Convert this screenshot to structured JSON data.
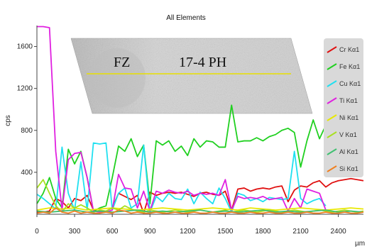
{
  "chart_data": {
    "type": "line",
    "title": "All Elements",
    "xlabel": "µm",
    "ylabel": "cps",
    "xlim": [
      0,
      2600
    ],
    "ylim": [
      0,
      1800
    ],
    "x_ticks": [
      0,
      300,
      600,
      900,
      1200,
      1500,
      1800,
      2100,
      2400
    ],
    "y_ticks": [
      400,
      800,
      1200,
      1600
    ],
    "grid": false,
    "legend_position": "right",
    "inset_image": {
      "label_left": "FZ",
      "label_right": "17-4 PH"
    },
    "series": [
      {
        "name": "Cr Kα1",
        "color": "#e01010",
        "x": [
          0,
          50,
          100,
          150,
          200,
          250,
          300,
          350,
          400,
          450,
          500,
          550,
          600,
          650,
          700,
          750,
          800,
          850,
          900,
          950,
          1000,
          1050,
          1100,
          1150,
          1200,
          1250,
          1300,
          1350,
          1400,
          1450,
          1500,
          1550,
          1600,
          1650,
          1700,
          1750,
          1800,
          1850,
          1900,
          1950,
          2000,
          2050,
          2100,
          2150,
          2200,
          2250,
          2300,
          2350,
          2400,
          2450,
          2500,
          2550,
          2600
        ],
        "y": [
          20,
          20,
          30,
          150,
          120,
          60,
          150,
          130,
          180,
          40,
          20,
          30,
          60,
          200,
          170,
          140,
          180,
          10,
          210,
          180,
          200,
          210,
          200,
          210,
          190,
          170,
          200,
          210,
          190,
          180,
          220,
          40,
          240,
          250,
          220,
          240,
          250,
          240,
          260,
          270,
          120,
          230,
          270,
          260,
          300,
          320,
          260,
          300,
          320,
          330,
          340,
          330,
          320
        ]
      },
      {
        "name": "Fe Kα1",
        "color": "#20d020",
        "x": [
          0,
          50,
          100,
          150,
          200,
          250,
          300,
          350,
          400,
          450,
          500,
          550,
          600,
          650,
          700,
          750,
          800,
          850,
          900,
          950,
          1000,
          1050,
          1100,
          1150,
          1200,
          1250,
          1300,
          1350,
          1400,
          1450,
          1500,
          1550,
          1600,
          1650,
          1700,
          1750,
          1800,
          1850,
          1900,
          1950,
          2000,
          2050,
          2100,
          2150,
          2200,
          2250,
          2300,
          2350,
          2400,
          2450,
          2500,
          2550,
          2600
        ],
        "y": [
          100,
          200,
          350,
          150,
          60,
          620,
          480,
          600,
          350,
          30,
          60,
          80,
          350,
          650,
          600,
          720,
          550,
          660,
          100,
          700,
          660,
          700,
          600,
          650,
          560,
          720,
          640,
          700,
          690,
          640,
          640,
          1040,
          690,
          700,
          700,
          730,
          700,
          740,
          760,
          800,
          820,
          780,
          450,
          700,
          900,
          720,
          850,
          920,
          930,
          920,
          910,
          900,
          900
        ]
      },
      {
        "name": "Cu Kα1",
        "color": "#20e0f0",
        "x": [
          0,
          50,
          100,
          150,
          200,
          250,
          300,
          350,
          400,
          450,
          500,
          550,
          600,
          650,
          700,
          750,
          800,
          850,
          900,
          950,
          1000,
          1050,
          1100,
          1150,
          1200,
          1250,
          1300,
          1350,
          1400,
          1450,
          1500,
          1550,
          1600,
          1650,
          1700,
          1750,
          1800,
          1850,
          1900,
          1950,
          2000,
          2050,
          2100,
          2150,
          2200,
          2250,
          2300
        ],
        "y": [
          190,
          150,
          100,
          50,
          640,
          200,
          40,
          500,
          40,
          680,
          670,
          680,
          40,
          200,
          250,
          60,
          100,
          660,
          20,
          170,
          120,
          200,
          150,
          140,
          240,
          100,
          210,
          150,
          100,
          250,
          150,
          20,
          200,
          180,
          130,
          150,
          120,
          160,
          150,
          140,
          150,
          600,
          150,
          100,
          130,
          150,
          80
        ]
      },
      {
        "name": "Ti Kα1",
        "color": "#e020e0",
        "x": [
          0,
          50,
          100,
          150,
          200,
          250,
          300,
          350,
          400,
          450,
          500,
          550,
          600,
          650,
          700,
          750,
          800,
          850,
          900,
          950,
          1000,
          1050,
          1100,
          1150,
          1200,
          1250,
          1300,
          1350,
          1400,
          1450,
          1500,
          1550,
          1600,
          1650,
          1700,
          1750,
          1800,
          1850,
          1900,
          1950,
          2000,
          2050,
          2100,
          2150,
          2200,
          2250,
          2300,
          2350
        ],
        "y": [
          1790,
          1790,
          1780,
          600,
          40,
          520,
          580,
          590,
          350,
          30,
          20,
          20,
          40,
          380,
          250,
          240,
          60,
          220,
          30,
          220,
          200,
          230,
          210,
          200,
          220,
          180,
          200,
          190,
          200,
          180,
          330,
          40,
          170,
          150,
          160,
          150,
          170,
          140,
          150,
          160,
          30,
          150,
          60,
          240,
          220,
          200,
          40,
          10
        ]
      },
      {
        "name": "Ni Kα1",
        "color": "#e8e800",
        "x": [
          0,
          100,
          200,
          300,
          400,
          500,
          600,
          700,
          800,
          900,
          1000,
          1100,
          1200,
          1300,
          1400,
          1500,
          1600,
          1700,
          1800,
          1900,
          2000,
          2100,
          2200,
          2300,
          2400,
          2500,
          2600
        ],
        "y": [
          40,
          60,
          50,
          60,
          40,
          50,
          60,
          50,
          40,
          50,
          60,
          50,
          40,
          50,
          60,
          50,
          40,
          60,
          50,
          40,
          50,
          60,
          50,
          40,
          50,
          60,
          50
        ]
      },
      {
        "name": "V Kα1",
        "color": "#a8e020",
        "x": [
          0,
          50,
          100,
          150,
          200,
          250,
          300,
          350,
          400,
          450,
          500,
          550,
          600,
          650,
          700,
          750,
          800,
          850,
          900,
          950,
          1000,
          1050,
          1100,
          1150,
          1200,
          1250,
          1300,
          1350,
          1400,
          1450,
          1500,
          1550,
          1600,
          1650,
          1700,
          1750,
          1800,
          1850,
          1900,
          1950,
          2000,
          2050,
          2100,
          2150,
          2200,
          2250,
          2300,
          2350,
          2400,
          2450,
          2500,
          2550,
          2600
        ],
        "y": [
          250,
          330,
          200,
          80,
          20,
          100,
          60,
          90,
          60,
          20,
          40,
          30,
          60,
          40,
          80,
          50,
          30,
          20,
          40,
          30,
          20,
          30,
          40,
          30,
          20,
          30,
          40,
          30,
          20,
          30,
          40,
          20,
          30,
          40,
          30,
          20,
          30,
          40,
          30,
          20,
          30,
          40,
          30,
          20,
          30,
          40,
          30,
          20,
          30,
          40,
          30,
          20,
          30
        ]
      },
      {
        "name": "Al Kα1",
        "color": "#40c070",
        "x": [
          0,
          100,
          200,
          300,
          400,
          500,
          600,
          700,
          800,
          900,
          1000,
          1100,
          1200,
          1300,
          1400,
          1500,
          1600,
          1700,
          1800,
          1900,
          2000,
          2100,
          2200,
          2300,
          2400,
          2500,
          2600
        ],
        "y": [
          30,
          20,
          30,
          40,
          20,
          30,
          20,
          30,
          40,
          20,
          30,
          20,
          30,
          40,
          20,
          30,
          20,
          30,
          40,
          20,
          30,
          20,
          30,
          40,
          20,
          30,
          20
        ]
      },
      {
        "name": "Si Kα1",
        "color": "#f08020",
        "x": [
          0,
          50,
          100,
          150,
          200,
          250,
          300,
          350,
          400,
          450,
          500,
          550,
          600,
          650,
          700,
          750,
          800,
          850,
          900,
          950,
          1000,
          1050,
          1100,
          1150,
          1200,
          1250,
          1300,
          1350,
          1400,
          1450,
          1500,
          1550,
          1600,
          1650,
          1700,
          1750,
          1800,
          1850,
          1900,
          1950,
          2000,
          2050,
          2100,
          2150,
          2200,
          2250,
          2300,
          2350,
          2400,
          2450,
          2500,
          2550,
          2600
        ],
        "y": [
          10,
          20,
          10,
          60,
          20,
          10,
          30,
          10,
          20,
          10,
          10,
          20,
          10,
          40,
          30,
          10,
          20,
          10,
          10,
          20,
          10,
          10,
          20,
          10,
          10,
          20,
          10,
          10,
          20,
          10,
          10,
          20,
          10,
          10,
          20,
          10,
          10,
          20,
          10,
          10,
          20,
          10,
          10,
          20,
          10,
          10,
          20,
          10,
          10,
          20,
          10,
          10,
          20
        ]
      }
    ]
  }
}
